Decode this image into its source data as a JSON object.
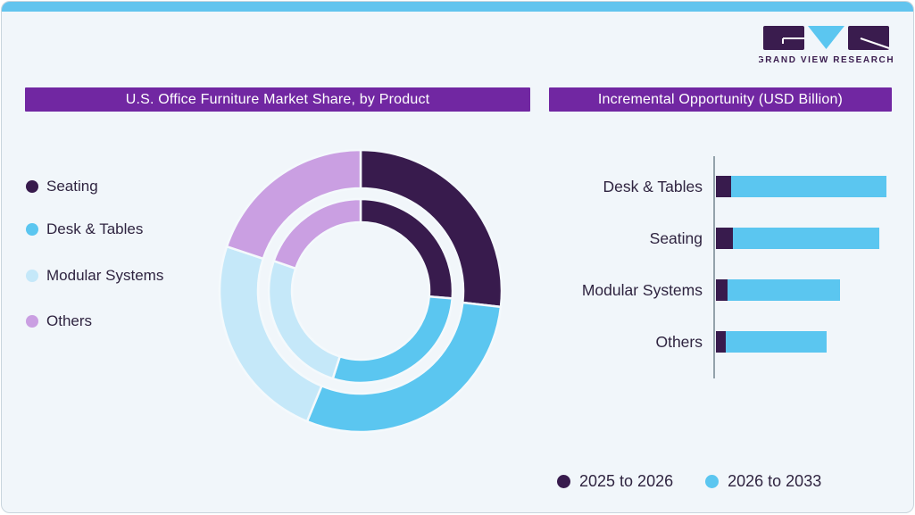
{
  "page": {
    "background": "#f1f6fa",
    "border_color": "#c9d5dd",
    "top_strip_color": "#62c4ee",
    "accent_purple": "#7127a2",
    "ink": "#2f2440",
    "axis_color": "#93a2ab",
    "separator_color": "#f4f9fc"
  },
  "logo": {
    "wordmark": "GRAND VIEW RESEARCH",
    "dark_color": "#3a1c4e",
    "cyan_color": "#5bc6f0"
  },
  "left_panel": {
    "title": "U.S. Office Furniture Market Share, by Product",
    "legend": [
      {
        "label": "Seating",
        "color": "#381b4d"
      },
      {
        "label": "Desk & Tables",
        "color": "#5bc6f0"
      },
      {
        "label": "Modular Systems",
        "color": "#c5e8f9"
      },
      {
        "label": "Others",
        "color": "#ca9fe2"
      }
    ]
  },
  "right_panel": {
    "title": "Incremental Opportunity (USD Billion)",
    "legend": [
      {
        "label": "2025 to 2026",
        "color": "#381b4d"
      },
      {
        "label": "2026 to 2033",
        "color": "#5bc6f0"
      }
    ]
  },
  "chart_data": [
    {
      "type": "pie",
      "subtype": "double-ring-donut",
      "title": "U.S. Office Furniture Market Share, by Product",
      "categories": [
        "Seating",
        "Desk & Tables",
        "Modular Systems",
        "Others"
      ],
      "colors": [
        "#381b4d",
        "#5bc6f0",
        "#c5e8f9",
        "#ca9fe2"
      ],
      "series": [
        {
          "name": "outer-ring",
          "values": [
            26.8,
            29.4,
            23.9,
            19.9
          ]
        },
        {
          "name": "inner-ring",
          "values": [
            26.3,
            28.6,
            25.4,
            19.7
          ]
        }
      ],
      "units": "percent of circle, estimated from arc angles (no numeric labels shown)",
      "start_angle": "12 o'clock, clockwise",
      "legend_position": "left"
    },
    {
      "type": "bar",
      "orientation": "horizontal",
      "stacked": true,
      "title": "Incremental Opportunity (USD Billion)",
      "categories": [
        "Desk & Tables",
        "Seating",
        "Modular Systems",
        "Others"
      ],
      "series": [
        {
          "name": "2025 to 2026",
          "color": "#381b4d",
          "values": [
            9,
            10,
            7,
            6
          ]
        },
        {
          "name": "2026 to 2033",
          "color": "#5bc6f0",
          "values": [
            91,
            86,
            66,
            59
          ]
        }
      ],
      "units": "relative length, % of longest total bar (no numeric axis shown)",
      "legend_position": "bottom",
      "grid": false
    }
  ]
}
